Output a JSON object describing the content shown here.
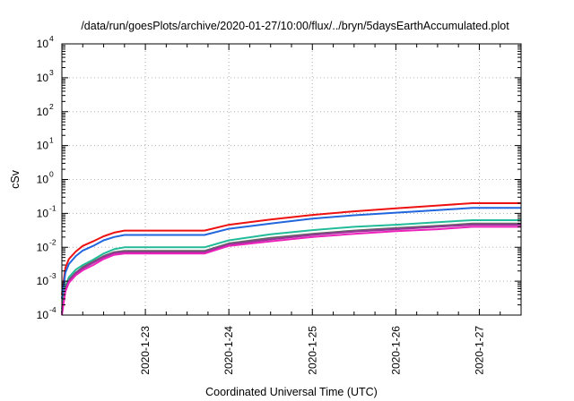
{
  "chart_data": {
    "type": "line",
    "title": "/data/run/goesPlots/archive/2020-01-27/10:00/flux/../bryn/5daysEarthAccumulated.plot",
    "xlabel": "Coordinated Universal Time (UTC)",
    "ylabel": "cSv",
    "y_scale": "log",
    "ylim": [
      0.0001,
      10000
    ],
    "xlim": [
      "2020-01-22T00:00",
      "2020-01-27T12:00"
    ],
    "grid": "dotted",
    "x_ticks": [
      "2020-1-23",
      "2020-1-24",
      "2020-1-25",
      "2020-1-26",
      "2020-1-27"
    ],
    "y_ticks": [
      {
        "value": 0.0001,
        "base": "10",
        "exp": "-4"
      },
      {
        "value": 0.001,
        "base": "10",
        "exp": "-3"
      },
      {
        "value": 0.01,
        "base": "10",
        "exp": "-2"
      },
      {
        "value": 0.1,
        "base": "10",
        "exp": "-1"
      },
      {
        "value": 1,
        "base": "10",
        "exp": "0"
      },
      {
        "value": 10,
        "base": "10",
        "exp": "1"
      },
      {
        "value": 100,
        "base": "10",
        "exp": "2"
      },
      {
        "value": 1000,
        "base": "10",
        "exp": "3"
      },
      {
        "value": 10000,
        "base": "10",
        "exp": "4"
      }
    ],
    "x": [
      "2020-01-22T00:00",
      "2020-01-22T01:00",
      "2020-01-22T02:00",
      "2020-01-22T04:00",
      "2020-01-22T06:00",
      "2020-01-22T09:00",
      "2020-01-22T12:00",
      "2020-01-22T15:00",
      "2020-01-22T18:00",
      "2020-01-23T00:00",
      "2020-01-23T12:00",
      "2020-01-23T17:00",
      "2020-01-24T00:00",
      "2020-01-24T12:00",
      "2020-01-25T00:00",
      "2020-01-25T12:00",
      "2020-01-26T00:00",
      "2020-01-26T12:00",
      "2020-01-26T22:00",
      "2020-01-27T12:00"
    ],
    "series": [
      {
        "color": "#ee1111",
        "values": [
          0.0004,
          0.0025,
          0.0045,
          0.0075,
          0.011,
          0.015,
          0.021,
          0.027,
          0.031,
          0.031,
          0.031,
          0.031,
          0.046,
          0.066,
          0.09,
          0.115,
          0.14,
          0.17,
          0.2,
          0.2
        ]
      },
      {
        "color": "#2266dd",
        "values": [
          0.0003,
          0.0018,
          0.0032,
          0.0055,
          0.008,
          0.011,
          0.016,
          0.02,
          0.023,
          0.023,
          0.023,
          0.023,
          0.035,
          0.05,
          0.07,
          0.088,
          0.105,
          0.125,
          0.145,
          0.145
        ]
      },
      {
        "color": "#22bb99",
        "values": [
          0.00015,
          0.0007,
          0.0013,
          0.0022,
          0.003,
          0.0043,
          0.0065,
          0.0088,
          0.01,
          0.01,
          0.01,
          0.01,
          0.016,
          0.024,
          0.032,
          0.04,
          0.046,
          0.055,
          0.063,
          0.063
        ]
      },
      {
        "color": "#666666",
        "values": [
          0.00012,
          0.0006,
          0.0011,
          0.0018,
          0.0026,
          0.0038,
          0.0055,
          0.0072,
          0.0078,
          0.0078,
          0.0078,
          0.0078,
          0.013,
          0.019,
          0.025,
          0.031,
          0.037,
          0.043,
          0.05,
          0.05
        ]
      },
      {
        "color": "#993399",
        "values": [
          0.00011,
          0.00055,
          0.001,
          0.0017,
          0.0024,
          0.0035,
          0.0051,
          0.0067,
          0.0072,
          0.0072,
          0.0072,
          0.0072,
          0.012,
          0.017,
          0.023,
          0.029,
          0.034,
          0.04,
          0.046,
          0.046
        ]
      },
      {
        "color": "#ee22bb",
        "values": [
          0.0001,
          0.0005,
          0.0009,
          0.0015,
          0.0021,
          0.003,
          0.0045,
          0.006,
          0.0065,
          0.0065,
          0.0065,
          0.0065,
          0.011,
          0.015,
          0.02,
          0.025,
          0.03,
          0.034,
          0.04,
          0.04
        ]
      }
    ]
  }
}
